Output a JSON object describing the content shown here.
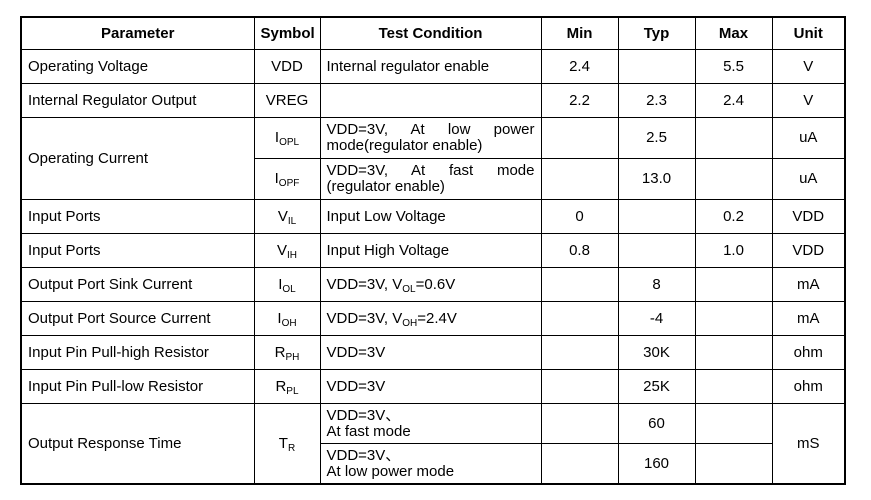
{
  "headers": {
    "parameter": "Parameter",
    "symbol": "Symbol",
    "condition": "Test Condition",
    "min": "Min",
    "typ": "Typ",
    "max": "Max",
    "unit": "Unit"
  },
  "rows": {
    "vdd": {
      "parameter": "Operating Voltage",
      "symbol": "VDD",
      "condition": "Internal regulator enable",
      "min": "2.4",
      "typ": "",
      "max": "5.5",
      "unit": "V"
    },
    "vreg": {
      "parameter": "Internal Regulator Output",
      "symbol": "VREG",
      "condition": "",
      "min": "2.2",
      "typ": "2.3",
      "max": "2.4",
      "unit": "V"
    },
    "iopl": {
      "parameter": "Operating Current",
      "symbol_main": "I",
      "symbol_sub": "OPL",
      "condition": "VDD=3V, At low power mode(regulator enable)",
      "typ": "2.5",
      "unit": "uA"
    },
    "iopf": {
      "symbol_main": "I",
      "symbol_sub": "OPF",
      "condition": "VDD=3V, At fast mode (regulator enable)",
      "typ": "13.0",
      "unit": "uA"
    },
    "vil": {
      "parameter": "Input Ports",
      "symbol_main": "V",
      "symbol_sub": "IL",
      "condition": "Input Low Voltage",
      "min": "0",
      "max": "0.2",
      "unit": "VDD"
    },
    "vih": {
      "parameter": "Input Ports",
      "symbol_main": "V",
      "symbol_sub": "IH",
      "condition": "Input High Voltage",
      "min": "0.8",
      "max": "1.0",
      "unit": "VDD"
    },
    "iol": {
      "parameter": "Output Port Sink Current",
      "symbol_main": "I",
      "symbol_sub": "OL",
      "condition_a": "VDD=3V, V",
      "condition_sub": "OL",
      "condition_b": "=0.6V",
      "typ": "8",
      "unit": "mA"
    },
    "ioh": {
      "parameter": "Output Port Source Current",
      "symbol_main": "I",
      "symbol_sub": "OH",
      "condition_a": "VDD=3V, V",
      "condition_sub": "OH",
      "condition_b": "=2.4V",
      "typ": "-4",
      "unit": "mA"
    },
    "rph": {
      "parameter": "Input Pin Pull-high Resistor",
      "symbol_main": "R",
      "symbol_sub": "PH",
      "condition": "VDD=3V",
      "typ": "30K",
      "unit": "ohm"
    },
    "rpl": {
      "parameter": "Input Pin Pull-low Resistor",
      "symbol_main": "R",
      "symbol_sub": "PL",
      "condition": "VDD=3V",
      "typ": "25K",
      "unit": "ohm"
    },
    "tr_fast": {
      "parameter": "Output Response Time",
      "symbol_main": "T",
      "symbol_sub": "R",
      "condition_l1": "VDD=3V、",
      "condition_l2": "At fast mode",
      "typ": "60",
      "unit": "mS"
    },
    "tr_low": {
      "condition_l1": "VDD=3V、",
      "condition_l2": "At low power mode",
      "typ": "160"
    }
  }
}
